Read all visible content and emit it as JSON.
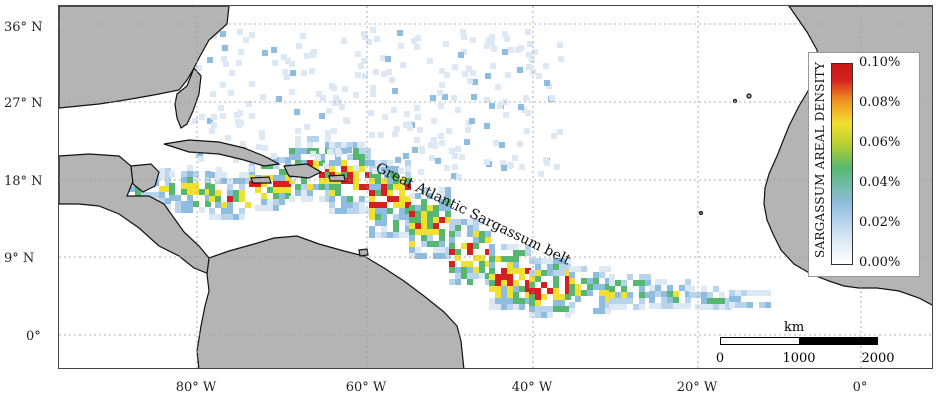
{
  "latitude_labels": [
    "36° N",
    "27° N",
    "18° N",
    "9° N",
    "0°"
  ],
  "longitude_labels": [
    "80° W",
    "60° W",
    "40° W",
    "20° W",
    "0°"
  ],
  "annotation": "Great Atlantic Sargassum belt",
  "legend": {
    "title": "SARGASSUM AREAL DENSITY",
    "ticks": [
      "0.10%",
      "0.08%",
      "0.06%",
      "0.04%",
      "0.02%",
      "0.00%"
    ],
    "colors": [
      "#ffffff",
      "#8fbde0",
      "#56b870",
      "#f0e030",
      "#d42020"
    ]
  },
  "scale_bar": {
    "unit": "km",
    "ticks": [
      "0",
      "1000",
      "2000"
    ]
  },
  "colors": {
    "land": "#b4b4b4",
    "coast": "#111111",
    "ocean": "#ffffff",
    "grid": "#999999",
    "high_density": "#d42020"
  }
}
